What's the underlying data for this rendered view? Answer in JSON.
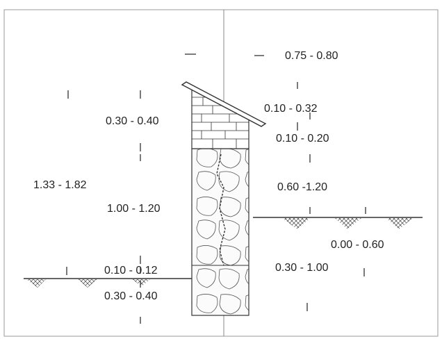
{
  "diagram": {
    "dimensions": {
      "top_width": "0.75 - 0.80",
      "left_cap_height": "0.30 - 0.40",
      "right_cap_upper": "0.10 - 0.32",
      "right_cap_lower": "0.10 - 0.20",
      "total_height": "1.33 - 1.82",
      "wall_height_above_ground": "1.00 - 1.20",
      "right_wall_height": "0.60 -1.20",
      "right_embedment": "0.00 - 0.60",
      "foundation_depth_right": "0.30 - 1.00",
      "left_ground_offset": "0.10 - 0.12",
      "foundation_depth_left": "0.30 - 0.40"
    }
  }
}
